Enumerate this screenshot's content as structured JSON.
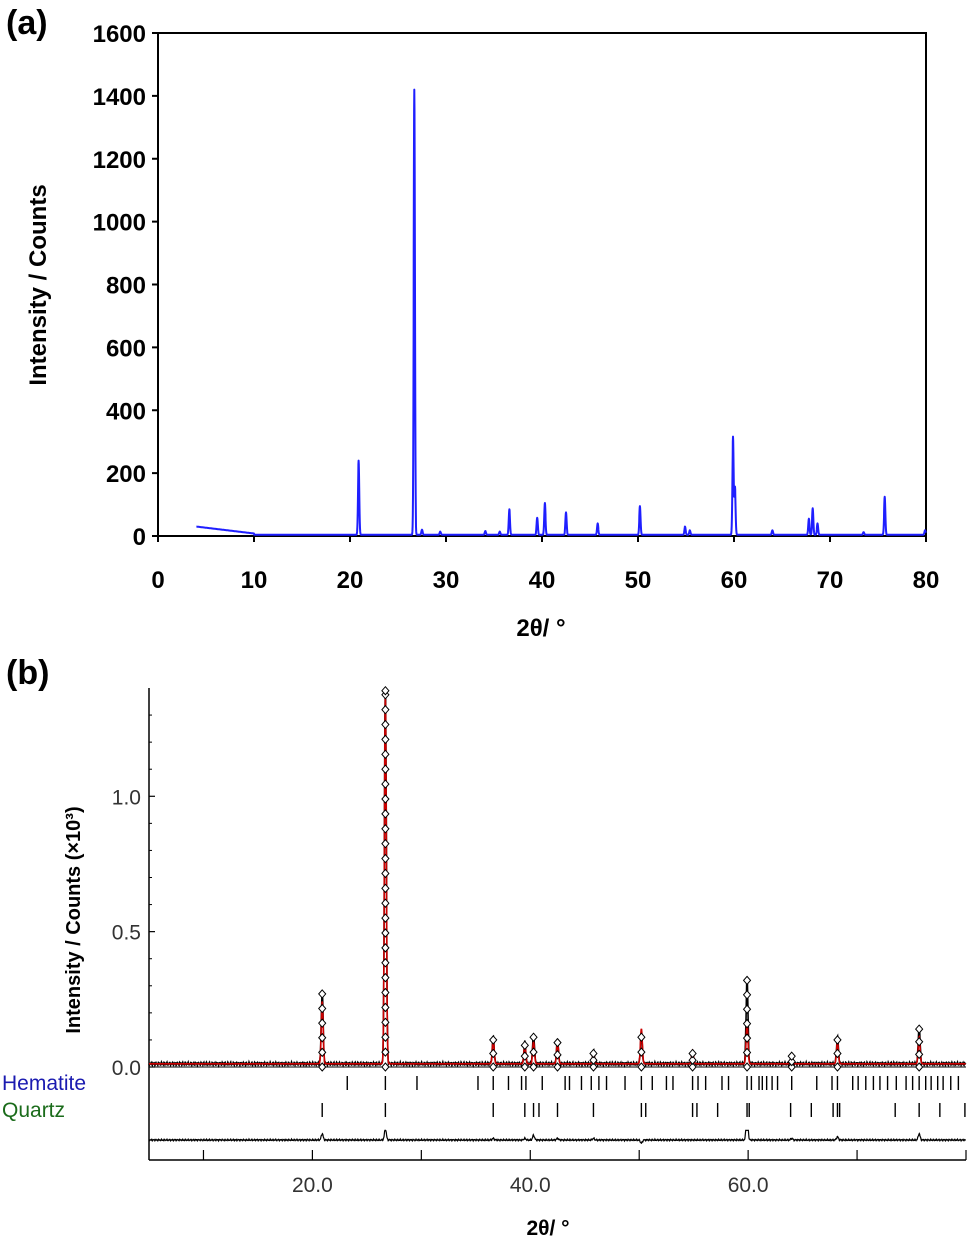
{
  "chart_data": [
    {
      "panel_label": "(a)",
      "type": "line",
      "xlabel": "2θ/ °",
      "ylabel": "Intensity / Counts",
      "xlim": [
        0,
        80
      ],
      "ylim": [
        0,
        1600
      ],
      "xticks": [
        "0",
        "10",
        "20",
        "30",
        "40",
        "50",
        "60",
        "70",
        "80"
      ],
      "yticks": [
        "0",
        "200",
        "400",
        "600",
        "800",
        "1000",
        "1200",
        "1400",
        "1600"
      ],
      "grid": false,
      "line_color": "#1f1fff",
      "background_start": {
        "x": 4.0,
        "y": 30,
        "end_x": 10,
        "end_y": 8
      },
      "peaks": [
        {
          "x": 20.9,
          "y": 240
        },
        {
          "x": 26.7,
          "y": 1420
        },
        {
          "x": 27.5,
          "y": 20
        },
        {
          "x": 29.4,
          "y": 14
        },
        {
          "x": 34.1,
          "y": 16
        },
        {
          "x": 35.6,
          "y": 14
        },
        {
          "x": 36.6,
          "y": 85
        },
        {
          "x": 39.5,
          "y": 58
        },
        {
          "x": 40.3,
          "y": 105
        },
        {
          "x": 42.5,
          "y": 75
        },
        {
          "x": 45.8,
          "y": 40
        },
        {
          "x": 50.2,
          "y": 95
        },
        {
          "x": 54.9,
          "y": 30
        },
        {
          "x": 55.4,
          "y": 18
        },
        {
          "x": 59.9,
          "y": 315
        },
        {
          "x": 60.1,
          "y": 155
        },
        {
          "x": 64.0,
          "y": 18
        },
        {
          "x": 67.8,
          "y": 55
        },
        {
          "x": 68.2,
          "y": 88
        },
        {
          "x": 68.7,
          "y": 40
        },
        {
          "x": 73.5,
          "y": 12
        },
        {
          "x": 75.7,
          "y": 125
        },
        {
          "x": 79.9,
          "y": 18
        }
      ]
    },
    {
      "panel_label": "(b)",
      "type": "line",
      "xlabel": "2θ/ °",
      "ylabel": "Intensity / Counts (×10³)",
      "xlim": [
        5,
        80
      ],
      "ylim": [
        0,
        1.4
      ],
      "xticks": [
        "20.0",
        "40.0",
        "60.0"
      ],
      "yticks": [
        "0.0",
        "0.5",
        "1.0"
      ],
      "grid": false,
      "observed_color": "#000000",
      "calculated_color": "#cc0000",
      "difference_color": "#000000",
      "peaks": [
        {
          "x": 20.9,
          "y": 0.27,
          "calc": 0.23
        },
        {
          "x": 26.7,
          "y": 1.43,
          "calc": 1.36
        },
        {
          "x": 36.6,
          "y": 0.1,
          "calc": 0.09
        },
        {
          "x": 39.5,
          "y": 0.08,
          "calc": 0.07
        },
        {
          "x": 40.3,
          "y": 0.11,
          "calc": 0.08
        },
        {
          "x": 42.5,
          "y": 0.09,
          "calc": 0.08
        },
        {
          "x": 45.8,
          "y": 0.05,
          "calc": 0.04
        },
        {
          "x": 50.2,
          "y": 0.11,
          "calc": 0.13
        },
        {
          "x": 54.9,
          "y": 0.05,
          "calc": 0.05
        },
        {
          "x": 59.9,
          "y": 0.32,
          "calc": 0.15
        },
        {
          "x": 64.0,
          "y": 0.04,
          "calc": 0.03
        },
        {
          "x": 68.2,
          "y": 0.1,
          "calc": 0.08
        },
        {
          "x": 75.7,
          "y": 0.14,
          "calc": 0.1
        }
      ],
      "phases": [
        {
          "name": "Hematite",
          "color": "#1a1ab0",
          "reflections": [
            23.2,
            26.7,
            29.6,
            35.2,
            36.6,
            38.0,
            39.2,
            39.6,
            41.1,
            43.2,
            43.6,
            44.7,
            45.6,
            46.3,
            47.0,
            48.7,
            50.2,
            51.2,
            52.5,
            53.1,
            54.9,
            55.4,
            56.1,
            57.6,
            58.2,
            59.9,
            60.3,
            61.0,
            61.3,
            61.7,
            62.2,
            62.7,
            64.0,
            66.3,
            67.7,
            68.2,
            69.6,
            70.1,
            70.8,
            71.5,
            72.1,
            72.8,
            73.6,
            74.5,
            75.1,
            75.7,
            76.3,
            76.8,
            77.4,
            77.9,
            78.6,
            79.3
          ]
        },
        {
          "name": "Quartz",
          "color": "#1a6b1a",
          "reflections": [
            20.9,
            26.7,
            36.6,
            39.5,
            40.3,
            40.8,
            42.5,
            45.8,
            50.2,
            50.6,
            54.9,
            55.3,
            57.2,
            59.9,
            60.1,
            63.9,
            65.8,
            67.8,
            68.2,
            68.4,
            73.5,
            75.7,
            77.6,
            79.9
          ]
        }
      ]
    }
  ]
}
